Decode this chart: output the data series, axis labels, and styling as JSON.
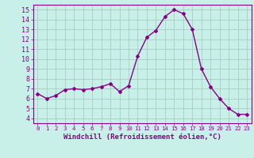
{
  "x": [
    0,
    1,
    2,
    3,
    4,
    5,
    6,
    7,
    8,
    9,
    10,
    11,
    12,
    13,
    14,
    15,
    16,
    17,
    18,
    19,
    20,
    21,
    22,
    23
  ],
  "y": [
    6.5,
    6.0,
    6.3,
    6.9,
    7.0,
    6.9,
    7.0,
    7.2,
    7.5,
    6.7,
    7.3,
    10.3,
    12.2,
    12.9,
    14.3,
    15.0,
    14.6,
    13.0,
    9.0,
    7.2,
    6.0,
    5.0,
    4.4,
    4.4
  ],
  "line_color": "#880088",
  "marker": "D",
  "marker_size": 2.0,
  "line_width": 1.0,
  "bg_color": "#c8f0e8",
  "grid_color": "#a0c8b8",
  "xlabel": "Windchill (Refroidissement éolien,°C)",
  "ylim": [
    3.5,
    15.5
  ],
  "xlim": [
    -0.5,
    23.5
  ],
  "yticks": [
    4,
    5,
    6,
    7,
    8,
    9,
    10,
    11,
    12,
    13,
    14,
    15
  ],
  "xticks": [
    0,
    1,
    2,
    3,
    4,
    5,
    6,
    7,
    8,
    9,
    10,
    11,
    12,
    13,
    14,
    15,
    16,
    17,
    18,
    19,
    20,
    21,
    22,
    23
  ],
  "xlabel_fontsize": 6.5,
  "ytick_fontsize": 6.0,
  "xtick_fontsize": 5.2
}
